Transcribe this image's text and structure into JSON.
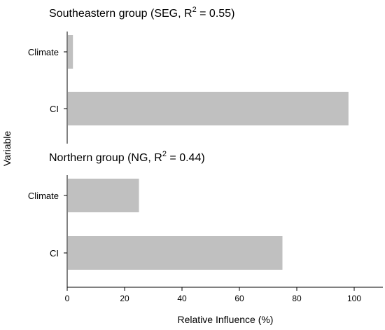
{
  "chart_data": {
    "type": "bar",
    "orientation": "horizontal",
    "y_axis_label": "Variable",
    "x_axis_label": "Relative Influence (%)",
    "xlim": [
      0,
      110
    ],
    "x_ticks": [
      0,
      20,
      40,
      60,
      80,
      100
    ],
    "x_tick_labels": [
      "0",
      "20",
      "40",
      "60",
      "80",
      "100"
    ],
    "bar_color": "#c0c0c0",
    "grid": false,
    "panels": [
      {
        "title_prefix": "Southeastern group (SEG, R",
        "title_superscript": "2",
        "title_suffix": " = 0.55)",
        "categories": [
          "Climate",
          "CI"
        ],
        "values": [
          2,
          98
        ]
      },
      {
        "title_prefix": "Northern group (NG, R",
        "title_superscript": "2",
        "title_suffix": " = 0.44)",
        "categories": [
          "Climate",
          "CI"
        ],
        "values": [
          25,
          75
        ]
      }
    ]
  }
}
